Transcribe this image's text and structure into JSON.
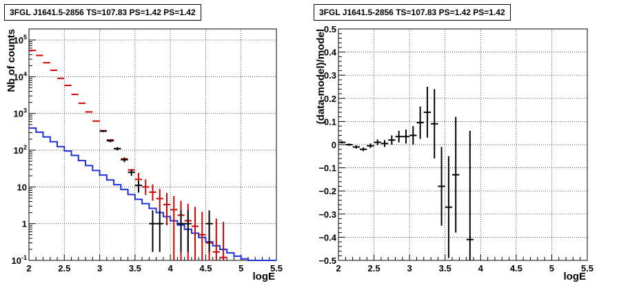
{
  "chart_data": [
    {
      "type": "line",
      "title": "3FGL J1641.5-2856 TS=107.83 PS=1.42 PS=1.42",
      "xlabel": "logE",
      "ylabel": "Nb of counts",
      "xlim": [
        2,
        5.5
      ],
      "ylim": [
        0.1,
        200000
      ],
      "y_scale": "log",
      "grid": true,
      "x_ticks": [
        "2",
        "2.5",
        "3",
        "3.5",
        "4",
        "4.5",
        "5",
        "5.5"
      ],
      "y_ticks": [
        {
          "value": 0.1,
          "label": "10",
          "exp": "-1"
        },
        {
          "value": 1,
          "label": "1",
          "exp": ""
        },
        {
          "value": 10,
          "label": "10",
          "exp": ""
        },
        {
          "value": 100,
          "label": "10",
          "exp": "2"
        },
        {
          "value": 1000,
          "label": "10",
          "exp": "3"
        },
        {
          "value": 10000,
          "label": "10",
          "exp": "4"
        },
        {
          "value": 100000,
          "label": "10",
          "exp": "5"
        }
      ],
      "colors": {
        "model": "#cc0000",
        "background": "#1f2fd6",
        "data": "#000000"
      },
      "model_counts": {
        "color": "#cc0000",
        "x": [
          2.05,
          2.15,
          2.25,
          2.35,
          2.45,
          2.55,
          2.65,
          2.75,
          2.85,
          2.95,
          3.05,
          3.15,
          3.25,
          3.35,
          3.45,
          3.55,
          3.65,
          3.75,
          3.85,
          3.95,
          4.05,
          4.15,
          4.25,
          4.35,
          4.45,
          4.55,
          4.65,
          4.75,
          4.85
        ],
        "y": [
          52000,
          38000,
          24000,
          15000,
          9000,
          5800,
          3300,
          1900,
          1100,
          620,
          340,
          190,
          110,
          58,
          29,
          16,
          10,
          7.2,
          4.8,
          3.3,
          2.4,
          1.7,
          1.2,
          0.85,
          0.5,
          0.3,
          0.17,
          0.12,
          0.1
        ],
        "yerr_low": [
          null,
          null,
          null,
          null,
          null,
          null,
          null,
          null,
          null,
          null,
          null,
          null,
          null,
          null,
          null,
          null,
          4,
          3,
          2.6,
          2.4,
          2.3,
          1.65,
          1.19,
          0.84,
          0.49,
          0.3,
          0.17,
          0.12,
          0.1
        ],
        "yerr_high": [
          null,
          null,
          null,
          null,
          null,
          null,
          null,
          null,
          null,
          null,
          null,
          null,
          null,
          null,
          null,
          8,
          6,
          4.5,
          4,
          3.5,
          3.2,
          2.5,
          2.3,
          2,
          1.6,
          1.4,
          1.2,
          1,
          0.8
        ]
      },
      "background_counts": {
        "color": "#1f2fd6",
        "edges": [
          2.0,
          2.1,
          2.2,
          2.3,
          2.4,
          2.5,
          2.6,
          2.7,
          2.8,
          2.9,
          3.0,
          3.1,
          3.2,
          3.3,
          3.4,
          3.5,
          3.6,
          3.7,
          3.8,
          3.9,
          4.0,
          4.1,
          4.2,
          4.3,
          4.4,
          4.5,
          4.6,
          4.7,
          4.8,
          4.9,
          5.0,
          5.1,
          5.2,
          5.3,
          5.4,
          5.5
        ],
        "values": [
          400,
          310,
          230,
          170,
          125,
          95,
          72,
          52,
          38,
          28,
          21,
          15.5,
          11.5,
          8.5,
          6.2,
          4.6,
          3.5,
          2.6,
          2.0,
          1.55,
          1.2,
          0.92,
          0.7,
          0.55,
          0.42,
          0.32,
          0.25,
          0.2,
          0.16,
          0.13,
          0.11,
          0.1,
          0.1,
          0.1,
          0.1
        ]
      },
      "data_counts": {
        "color": "#000000",
        "x": [
          3.05,
          3.15,
          3.25,
          3.35,
          3.45,
          3.55,
          3.75,
          3.85,
          4.15,
          4.25,
          4.55
        ],
        "y": [
          330,
          180,
          110,
          55,
          25,
          11,
          1,
          1,
          1,
          1,
          1
        ],
        "yerr_low": [
          20,
          15,
          11,
          8,
          5,
          4,
          0.83,
          0.83,
          0.83,
          0.83,
          0.83
        ],
        "yerr_high": [
          20,
          15,
          11,
          8,
          5,
          4,
          1.3,
          1.3,
          1.3,
          1.3,
          1.3
        ]
      }
    },
    {
      "type": "scatter",
      "title": "3FGL J1641.5-2856 TS=107.83 PS=1.42 PS=1.42",
      "xlabel": "logE",
      "ylabel": "(data-model)/model",
      "xlim": [
        2,
        5.5
      ],
      "ylim": [
        -0.5,
        0.5
      ],
      "grid": true,
      "x_ticks": [
        "2",
        "2.5",
        "3",
        "3.5",
        "4",
        "4.5",
        "5",
        "5.5"
      ],
      "y_ticks": [
        "−0.5",
        "−0.4",
        "−0.3",
        "−0.2",
        "−0.1",
        "0",
        "0.1",
        "0.2",
        "0.3",
        "0.4",
        "0.5"
      ],
      "y_tick_values": [
        -0.5,
        -0.4,
        -0.3,
        -0.2,
        -0.1,
        0,
        0.1,
        0.2,
        0.3,
        0.4,
        0.5
      ],
      "points": {
        "x": [
          2.05,
          2.15,
          2.25,
          2.35,
          2.45,
          2.55,
          2.65,
          2.75,
          2.85,
          2.95,
          3.05,
          3.15,
          3.25,
          3.35,
          3.45,
          3.55,
          3.65,
          3.85
        ],
        "y": [
          0.01,
          0.0,
          -0.01,
          -0.02,
          -0.005,
          0.01,
          0.005,
          0.02,
          0.035,
          0.035,
          0.04,
          0.095,
          0.14,
          0.09,
          -0.18,
          -0.27,
          -0.13,
          -0.41
        ],
        "yerr": [
          0.005,
          0.005,
          0.007,
          0.008,
          0.01,
          0.012,
          0.015,
          0.02,
          0.025,
          0.03,
          0.04,
          0.07,
          0.11,
          0.15,
          0.17,
          0.22,
          0.25,
          0.47
        ]
      }
    }
  ]
}
